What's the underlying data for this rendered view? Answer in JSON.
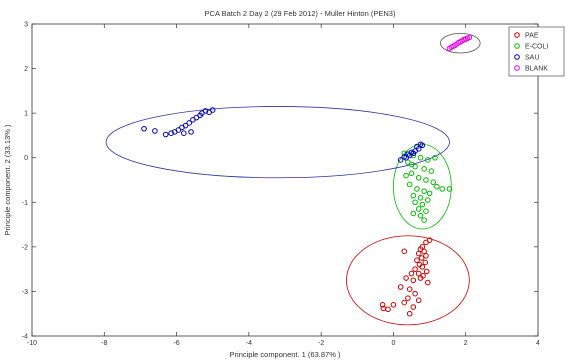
{
  "chart_data": {
    "type": "scatter",
    "title": "PCA Batch 2 Day 2 (29 Feb 2012) - Muller Hinton (PEN3)",
    "xlabel": "Principle component. 1 (63.87% )",
    "ylabel": "Principle component. 2 (33.13% )",
    "xlim": [
      -10,
      4
    ],
    "ylim": [
      -4,
      3
    ],
    "xticks": [
      -10,
      -8,
      -6,
      -4,
      -2,
      0,
      2,
      4
    ],
    "yticks": [
      -4,
      -3,
      -2,
      -1,
      0,
      1,
      2,
      3
    ],
    "grid": false,
    "legend_position": "top-right",
    "series": [
      {
        "name": "PAE",
        "color": "#cc0000",
        "marker": "circle-open",
        "points": [
          [
            0.8,
            -2.0
          ],
          [
            0.75,
            -2.05
          ],
          [
            0.85,
            -2.1
          ],
          [
            0.7,
            -2.15
          ],
          [
            0.9,
            -2.2
          ],
          [
            0.78,
            -2.25
          ],
          [
            0.65,
            -2.3
          ],
          [
            0.88,
            -2.35
          ],
          [
            0.72,
            -2.4
          ],
          [
            0.8,
            -2.45
          ],
          [
            0.6,
            -2.5
          ],
          [
            0.92,
            -2.55
          ],
          [
            0.7,
            -2.6
          ],
          [
            0.82,
            -2.65
          ],
          [
            0.75,
            -2.7
          ],
          [
            0.55,
            -2.75
          ],
          [
            0.95,
            -2.8
          ],
          [
            1.0,
            -1.85
          ],
          [
            0.9,
            -1.9
          ],
          [
            0.5,
            -2.6
          ],
          [
            0.45,
            -2.95
          ],
          [
            0.6,
            -3.05
          ],
          [
            0.4,
            -3.15
          ],
          [
            0.7,
            -3.2
          ],
          [
            0.3,
            -3.25
          ],
          [
            0.55,
            -3.35
          ],
          [
            0.0,
            -3.3
          ],
          [
            -0.15,
            -3.4
          ],
          [
            -0.3,
            -3.3
          ],
          [
            -0.28,
            -3.38
          ],
          [
            0.45,
            -3.5
          ],
          [
            0.2,
            -2.9
          ],
          [
            0.3,
            -2.1
          ],
          [
            0.35,
            -2.7
          ]
        ]
      },
      {
        "name": "E-COLI",
        "color": "#00bb00",
        "marker": "circle-open",
        "points": [
          [
            0.3,
            0.1
          ],
          [
            0.55,
            0.05
          ],
          [
            0.75,
            0.0
          ],
          [
            0.95,
            -0.05
          ],
          [
            1.15,
            0.0
          ],
          [
            0.4,
            -0.1
          ],
          [
            0.6,
            -0.2
          ],
          [
            0.85,
            -0.25
          ],
          [
            1.05,
            -0.3
          ],
          [
            0.5,
            -0.35
          ],
          [
            0.7,
            -0.45
          ],
          [
            0.9,
            -0.5
          ],
          [
            1.1,
            -0.55
          ],
          [
            0.45,
            -0.6
          ],
          [
            0.65,
            -0.7
          ],
          [
            0.85,
            -0.75
          ],
          [
            1.0,
            -0.8
          ],
          [
            0.55,
            -0.85
          ],
          [
            0.75,
            -0.9
          ],
          [
            0.95,
            -0.95
          ],
          [
            0.6,
            -1.0
          ],
          [
            0.8,
            -1.05
          ],
          [
            0.7,
            -1.15
          ],
          [
            0.9,
            -1.2
          ],
          [
            0.75,
            -1.3
          ],
          [
            0.85,
            -1.4
          ],
          [
            0.55,
            -1.25
          ],
          [
            1.2,
            -0.65
          ],
          [
            1.35,
            -0.7
          ],
          [
            1.55,
            -0.7
          ],
          [
            0.35,
            -0.4
          ],
          [
            0.5,
            -0.15
          ]
        ]
      },
      {
        "name": "SAU",
        "color": "#0000bb",
        "marker": "circle-open",
        "points": [
          [
            -6.9,
            0.65
          ],
          [
            -6.6,
            0.6
          ],
          [
            -6.15,
            0.55
          ],
          [
            -6.05,
            0.58
          ],
          [
            -5.95,
            0.62
          ],
          [
            -5.85,
            0.68
          ],
          [
            -5.75,
            0.72
          ],
          [
            -5.65,
            0.78
          ],
          [
            -5.55,
            0.85
          ],
          [
            -5.45,
            0.9
          ],
          [
            -5.35,
            0.95
          ],
          [
            -5.3,
            1.0
          ],
          [
            -5.2,
            1.05
          ],
          [
            -5.1,
            1.02
          ],
          [
            -5.0,
            1.07
          ],
          [
            -5.6,
            0.58
          ],
          [
            -6.3,
            0.52
          ],
          [
            -5.8,
            0.55
          ],
          [
            0.2,
            -0.05
          ],
          [
            0.35,
            0.0
          ],
          [
            0.45,
            0.05
          ],
          [
            0.55,
            0.1
          ],
          [
            0.6,
            0.15
          ],
          [
            0.7,
            0.2
          ],
          [
            0.75,
            0.3
          ],
          [
            0.65,
            0.25
          ],
          [
            0.5,
            0.12
          ],
          [
            0.4,
            0.08
          ],
          [
            0.3,
            0.02
          ],
          [
            0.8,
            0.28
          ]
        ]
      },
      {
        "name": "BLANK",
        "color": "#ee00ee",
        "marker": "circle-open",
        "points": [
          [
            1.55,
            2.45
          ],
          [
            1.65,
            2.5
          ],
          [
            1.75,
            2.55
          ],
          [
            1.85,
            2.6
          ],
          [
            1.95,
            2.65
          ],
          [
            2.05,
            2.68
          ],
          [
            1.6,
            2.48
          ],
          [
            1.7,
            2.52
          ],
          [
            1.8,
            2.58
          ],
          [
            1.9,
            2.62
          ],
          [
            2.0,
            2.66
          ],
          [
            2.1,
            2.7
          ]
        ]
      }
    ],
    "ellipses": [
      {
        "series": "PAE",
        "color": "#cc0000",
        "cx": 0.4,
        "cy": -2.75,
        "rx": 1.7,
        "ry": 1.0
      },
      {
        "series": "E-COLI",
        "color": "#00bb00",
        "cx": 0.8,
        "cy": -0.65,
        "rx": 0.8,
        "ry": 0.95
      },
      {
        "series": "SAU",
        "color": "#3333aa",
        "cx": -3.2,
        "cy": 0.35,
        "rx": 4.75,
        "ry": 0.8
      },
      {
        "series": "BLANK",
        "color": "#555555",
        "cx": 1.85,
        "cy": 2.57,
        "rx": 0.55,
        "ry": 0.22
      }
    ]
  }
}
